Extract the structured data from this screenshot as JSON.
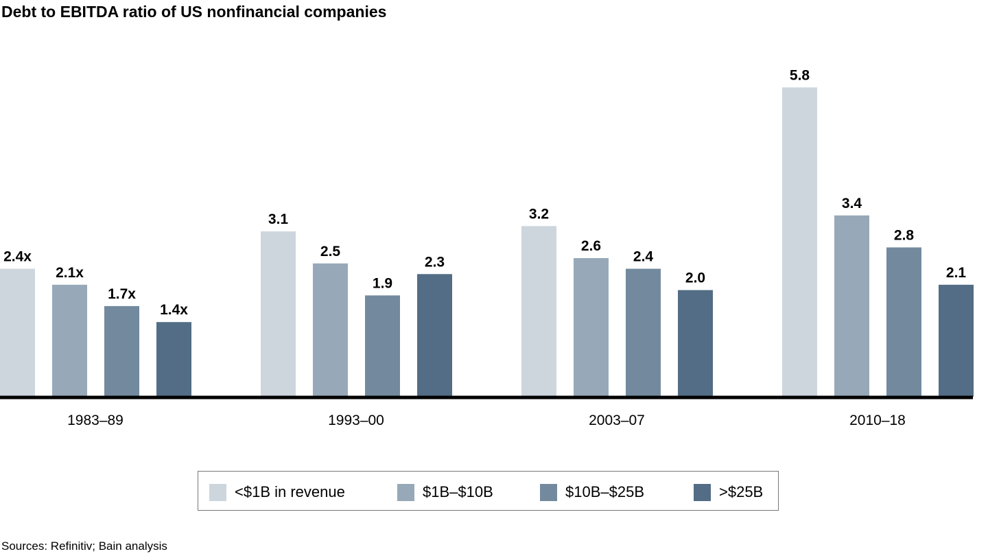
{
  "chart_data": {
    "type": "bar",
    "title": "Debt to EBITDA ratio of US nonfinancial companies",
    "categories": [
      "1983–89",
      "1993–00",
      "2003–07",
      "2010–18"
    ],
    "series": [
      {
        "name": "<$1B in revenue",
        "color": "#cdd5dd",
        "values": [
          2.4,
          3.1,
          3.2,
          5.8
        ],
        "data_labels": [
          "2.4x",
          "3.1",
          "3.2",
          "5.8"
        ]
      },
      {
        "name": "$1B–$10B",
        "color": "#97a9b8",
        "values": [
          2.1,
          2.5,
          2.6,
          3.4
        ],
        "data_labels": [
          "2.1x",
          "2.5",
          "2.6",
          "3.4"
        ]
      },
      {
        "name": "$10B–$25B",
        "color": "#738a9e",
        "values": [
          1.7,
          1.9,
          2.4,
          2.8
        ],
        "data_labels": [
          "1.7x",
          "1.9",
          "2.4",
          "2.8"
        ]
      },
      {
        "name": ">$25B",
        "color": "#526d85",
        "values": [
          1.4,
          2.3,
          2.0,
          2.1
        ],
        "data_labels": [
          "1.4x",
          "2.3",
          "2.0",
          "2.1"
        ]
      }
    ],
    "ylim": [
      0,
      6
    ],
    "grid": false,
    "legend_placement": "bottom-center",
    "highlight": {
      "category": "2010–18",
      "style": "red dashed box",
      "color": "#e0262b"
    }
  },
  "source": "Sources: Refinitiv; Bain analysis"
}
